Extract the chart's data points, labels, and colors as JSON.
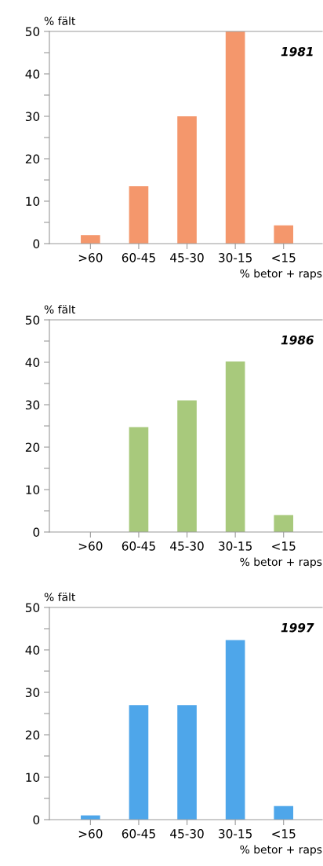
{
  "chart_data": [
    {
      "type": "bar",
      "ylabel": "% fält",
      "xlabel": "% betor + raps",
      "annotations": [
        "1981"
      ],
      "categories": [
        ">60",
        "60-45",
        "45-30",
        "30-15",
        "<15"
      ],
      "values": [
        2,
        13.5,
        30,
        50,
        4.3
      ],
      "color": "#f4976c",
      "ylim": [
        0,
        50
      ],
      "yticks": [
        0,
        {
          "value": 5,
          "label": null
        },
        10,
        {
          "value": 15,
          "label": null
        },
        20,
        {
          "value": 25,
          "label": null
        },
        30,
        {
          "value": 35,
          "label": null
        },
        40,
        {
          "value": 45,
          "label": null
        },
        50
      ],
      "grid": false
    },
    {
      "type": "bar",
      "ylabel": "% fält",
      "xlabel": "% betor + raps",
      "annotations": [
        "1986"
      ],
      "categories": [
        ">60",
        "60-45",
        "45-30",
        "30-15",
        "<15"
      ],
      "values": [
        0,
        24.7,
        31,
        40.2,
        4
      ],
      "color": "#a8c97c",
      "ylim": [
        0,
        50
      ],
      "yticks": [
        0,
        {
          "value": 5,
          "label": null
        },
        10,
        {
          "value": 15,
          "label": null
        },
        20,
        {
          "value": 25,
          "label": null
        },
        30,
        {
          "value": 35,
          "label": null
        },
        40,
        {
          "value": 45,
          "label": null
        },
        50
      ],
      "grid": false
    },
    {
      "type": "bar",
      "ylabel": "% fält",
      "xlabel": "% betor + raps",
      "annotations": [
        "1997"
      ],
      "categories": [
        ">60",
        "60-45",
        "45-30",
        "30-15",
        "<15"
      ],
      "values": [
        1,
        27,
        27,
        42.3,
        3.2
      ],
      "color": "#4ea6ea",
      "ylim": [
        0,
        50
      ],
      "yticks": [
        0,
        {
          "value": 5,
          "label": null
        },
        10,
        {
          "value": 15,
          "label": null
        },
        20,
        {
          "value": 25,
          "label": null
        },
        30,
        {
          "value": 35,
          "label": null
        },
        40,
        {
          "value": 45,
          "label": null
        },
        50
      ],
      "grid": false
    }
  ]
}
